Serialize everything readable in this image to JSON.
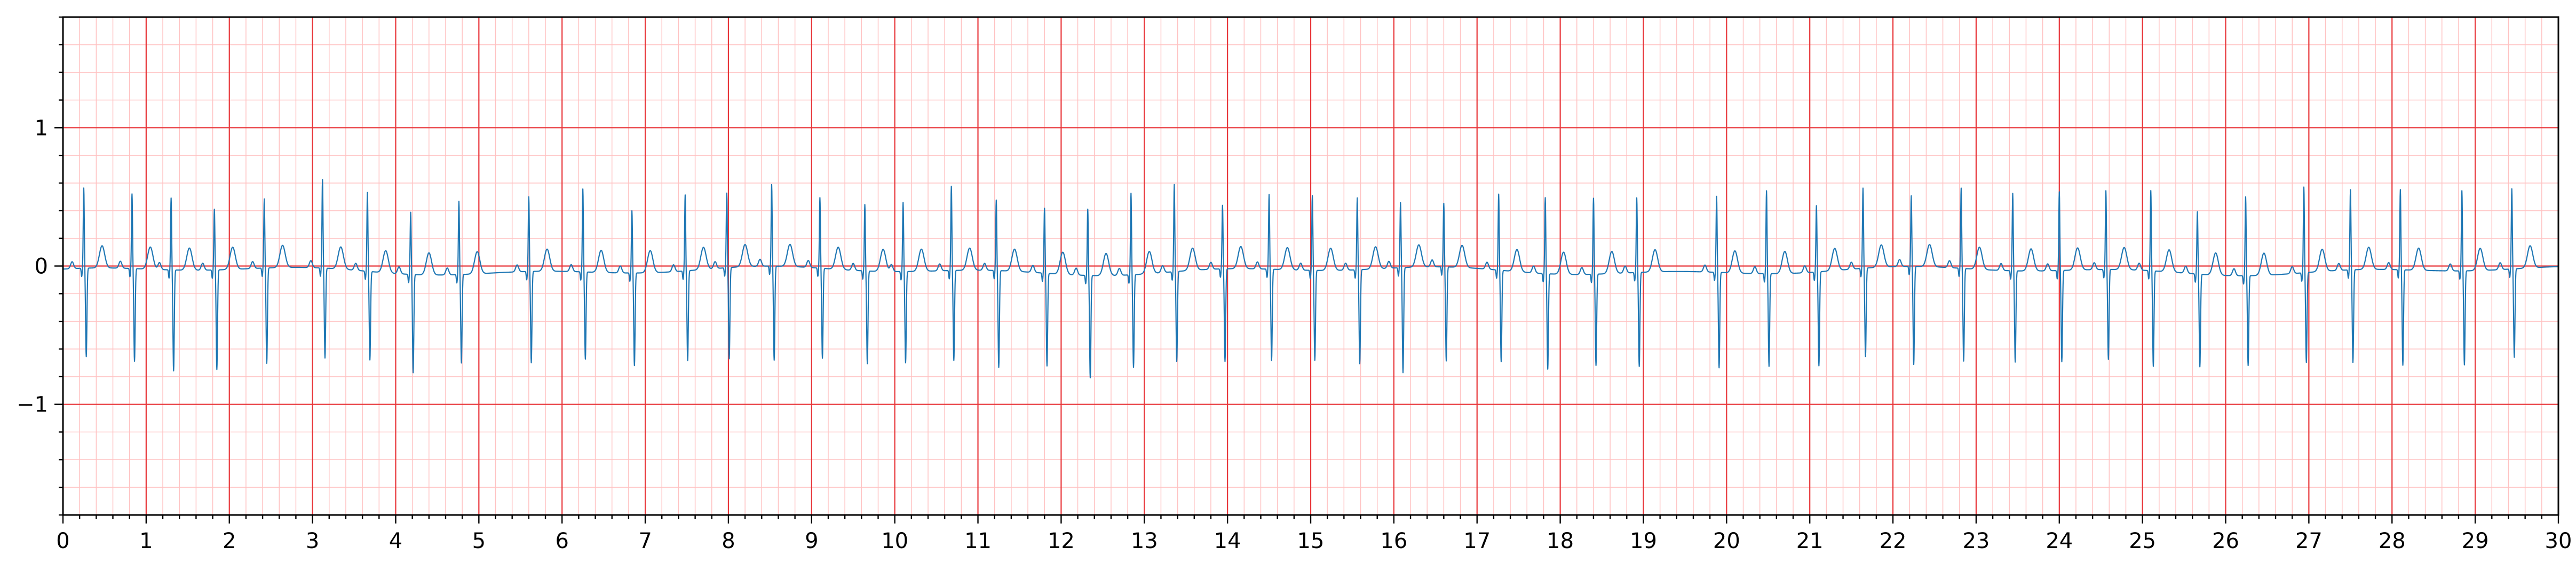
{
  "chart_data": {
    "type": "line",
    "title": "",
    "xlabel": "",
    "ylabel": "",
    "xlim": [
      0,
      30
    ],
    "ylim": [
      -1.8,
      1.8
    ],
    "x_ticks": [
      0,
      1,
      2,
      3,
      4,
      5,
      6,
      7,
      8,
      9,
      10,
      11,
      12,
      13,
      14,
      15,
      16,
      17,
      18,
      19,
      20,
      21,
      22,
      23,
      24,
      25,
      26,
      27,
      28,
      29,
      30
    ],
    "x_tick_labels": [
      "0",
      "1",
      "2",
      "3",
      "4",
      "5",
      "6",
      "7",
      "8",
      "9",
      "10",
      "11",
      "12",
      "13",
      "14",
      "15",
      "16",
      "17",
      "18",
      "19",
      "20",
      "21",
      "22",
      "23",
      "24",
      "25",
      "26",
      "27",
      "28",
      "29",
      "30"
    ],
    "y_ticks": [
      -1,
      0,
      1
    ],
    "y_tick_labels": [
      "−1",
      "0",
      "1"
    ],
    "grid": {
      "major_x": 1,
      "major_y": 1,
      "minor": 0.2
    },
    "series": [
      {
        "beats": [
          {
            "t": 0.25,
            "r": 0.56,
            "s": -0.7
          },
          {
            "t": 0.83,
            "r": 0.52,
            "s": -0.73
          },
          {
            "t": 1.3,
            "r": 0.5,
            "s": -0.79
          },
          {
            "t": 1.82,
            "r": 0.42,
            "s": -0.78
          },
          {
            "t": 2.42,
            "r": 0.48,
            "s": -0.75
          },
          {
            "t": 3.12,
            "r": 0.62,
            "s": -0.71
          },
          {
            "t": 3.66,
            "r": 0.55,
            "s": -0.7
          },
          {
            "t": 4.18,
            "r": 0.43,
            "s": -0.77
          },
          {
            "t": 4.76,
            "r": 0.51,
            "s": -0.7
          },
          {
            "t": 5.6,
            "r": 0.52,
            "s": -0.72
          },
          {
            "t": 6.25,
            "r": 0.58,
            "s": -0.69
          },
          {
            "t": 6.84,
            "r": 0.43,
            "s": -0.73
          },
          {
            "t": 7.48,
            "r": 0.53,
            "s": -0.71
          },
          {
            "t": 7.98,
            "r": 0.52,
            "s": -0.72
          },
          {
            "t": 8.52,
            "r": 0.57,
            "s": -0.74
          },
          {
            "t": 9.1,
            "r": 0.49,
            "s": -0.71
          },
          {
            "t": 9.64,
            "r": 0.46,
            "s": -0.73
          },
          {
            "t": 10.1,
            "r": 0.48,
            "s": -0.72
          },
          {
            "t": 10.68,
            "r": 0.59,
            "s": -0.71
          },
          {
            "t": 11.22,
            "r": 0.49,
            "s": -0.76
          },
          {
            "t": 11.8,
            "r": 0.45,
            "s": -0.73
          },
          {
            "t": 12.32,
            "r": 0.46,
            "s": -0.8
          },
          {
            "t": 12.84,
            "r": 0.57,
            "s": -0.73
          },
          {
            "t": 13.36,
            "r": 0.61,
            "s": -0.71
          },
          {
            "t": 13.94,
            "r": 0.44,
            "s": -0.73
          },
          {
            "t": 14.5,
            "r": 0.52,
            "s": -0.72
          },
          {
            "t": 15.02,
            "r": 0.52,
            "s": -0.71
          },
          {
            "t": 15.56,
            "r": 0.5,
            "s": -0.74
          },
          {
            "t": 16.08,
            "r": 0.45,
            "s": -0.82
          },
          {
            "t": 16.6,
            "r": 0.44,
            "s": -0.74
          },
          {
            "t": 17.26,
            "r": 0.53,
            "s": -0.72
          },
          {
            "t": 17.82,
            "r": 0.53,
            "s": -0.75
          },
          {
            "t": 18.4,
            "r": 0.53,
            "s": -0.72
          },
          {
            "t": 18.92,
            "r": 0.52,
            "s": -0.74
          },
          {
            "t": 19.88,
            "r": 0.53,
            "s": -0.75
          },
          {
            "t": 20.48,
            "r": 0.58,
            "s": -0.73
          },
          {
            "t": 21.08,
            "r": 0.46,
            "s": -0.74
          },
          {
            "t": 21.64,
            "r": 0.56,
            "s": -0.7
          },
          {
            "t": 22.22,
            "r": 0.49,
            "s": -0.77
          },
          {
            "t": 22.82,
            "r": 0.56,
            "s": -0.73
          },
          {
            "t": 23.44,
            "r": 0.54,
            "s": -0.72
          },
          {
            "t": 24.0,
            "r": 0.55,
            "s": -0.72
          },
          {
            "t": 24.56,
            "r": 0.55,
            "s": -0.71
          },
          {
            "t": 25.1,
            "r": 0.56,
            "s": -0.75
          },
          {
            "t": 25.66,
            "r": 0.43,
            "s": -0.73
          },
          {
            "t": 26.24,
            "r": 0.55,
            "s": -0.71
          },
          {
            "t": 26.94,
            "r": 0.6,
            "s": -0.71
          },
          {
            "t": 27.5,
            "r": 0.56,
            "s": -0.73
          },
          {
            "t": 28.1,
            "r": 0.56,
            "s": -0.75
          },
          {
            "t": 28.84,
            "r": 0.56,
            "s": -0.74
          },
          {
            "t": 29.44,
            "r": 0.56,
            "s": -0.7
          }
        ]
      }
    ]
  },
  "colors": {
    "trace": "#1f77b4",
    "grid_major": "#e8363a",
    "grid_minor": "#ffc2c2",
    "axes": "#000000",
    "background": "#ffffff"
  }
}
